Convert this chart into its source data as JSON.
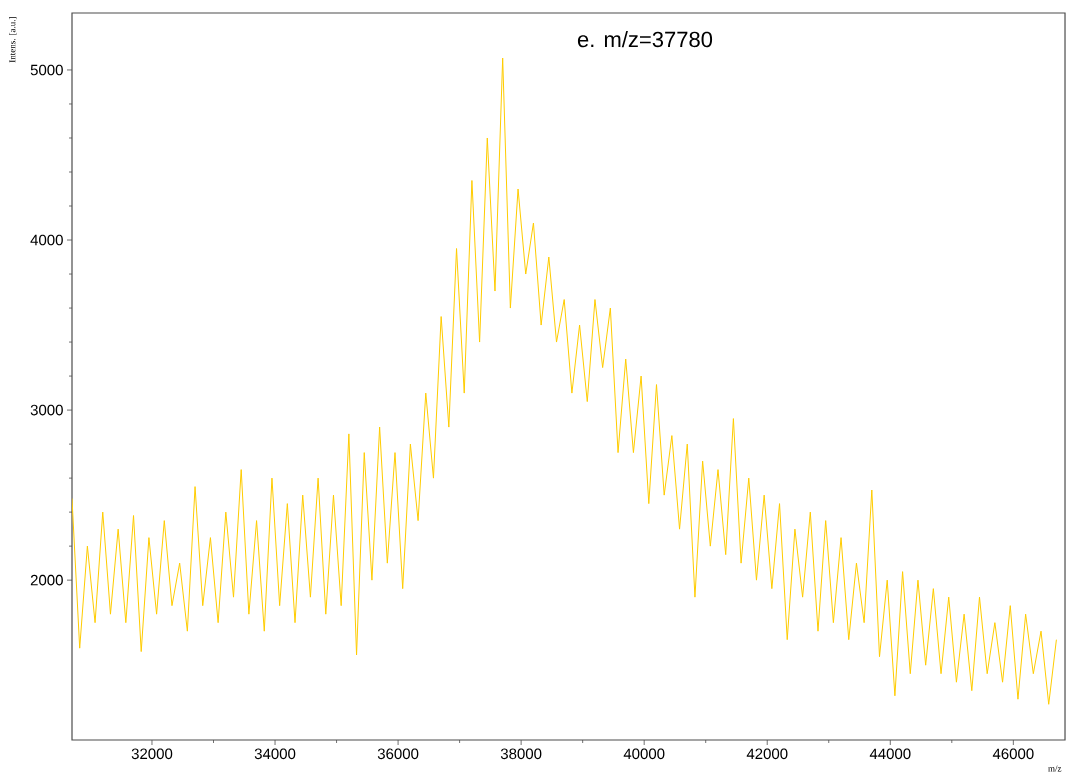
{
  "chart_data": {
    "type": "line",
    "xlabel": "m/z",
    "ylabel": "Intens. [a.u.]",
    "annotations": [
      "e. m/z=37780"
    ],
    "xlim": [
      30700,
      46840
    ],
    "ylim": [
      1060,
      5335
    ],
    "xticks": [
      32000,
      34000,
      36000,
      38000,
      40000,
      42000,
      44000,
      46000
    ],
    "yticks": [
      2000,
      3000,
      4000,
      5000
    ],
    "grid": false,
    "marker": "none",
    "line_style": "solid",
    "series": [
      {
        "color": "#ffcc00",
        "x": [
          30700,
          30825,
          30950,
          31075,
          31200,
          31325,
          31450,
          31575,
          31700,
          31825,
          31950,
          32075,
          32200,
          32325,
          32450,
          32575,
          32700,
          32825,
          32950,
          33075,
          33200,
          33325,
          33450,
          33575,
          33700,
          33825,
          33950,
          34075,
          34200,
          34325,
          34450,
          34575,
          34700,
          34825,
          34950,
          35075,
          35200,
          35325,
          35450,
          35575,
          35700,
          35825,
          35950,
          36075,
          36200,
          36325,
          36450,
          36575,
          36700,
          36825,
          36950,
          37075,
          37200,
          37325,
          37450,
          37575,
          37700,
          37825,
          37950,
          38075,
          38200,
          38325,
          38450,
          38575,
          38700,
          38825,
          38950,
          39075,
          39200,
          39325,
          39450,
          39575,
          39700,
          39825,
          39950,
          40075,
          40200,
          40325,
          40450,
          40575,
          40700,
          40825,
          40950,
          41075,
          41200,
          41325,
          41450,
          41575,
          41700,
          41825,
          41950,
          42075,
          42200,
          42325,
          42450,
          42575,
          42700,
          42825,
          42950,
          43075,
          43200,
          43325,
          43450,
          43575,
          43700,
          43825,
          43950,
          44075,
          44200,
          44325,
          44450,
          44575,
          44700,
          44825,
          44950,
          45075,
          45200,
          45325,
          45450,
          45575,
          45700,
          45825,
          45950,
          46075,
          46200,
          46325,
          46450,
          46575,
          46700
        ],
        "values": [
          2480,
          1600,
          2200,
          1750,
          2400,
          1800,
          2300,
          1750,
          2380,
          1580,
          2250,
          1800,
          2350,
          1850,
          2100,
          1700,
          2550,
          1850,
          2250,
          1750,
          2400,
          1900,
          2650,
          1800,
          2350,
          1700,
          2600,
          1850,
          2450,
          1750,
          2500,
          1900,
          2600,
          1800,
          2500,
          1850,
          2860,
          1560,
          2750,
          2000,
          2900,
          2100,
          2750,
          1950,
          2800,
          2350,
          3100,
          2600,
          3550,
          2900,
          3950,
          3100,
          4350,
          3400,
          4600,
          3700,
          5070,
          3600,
          4300,
          3800,
          4100,
          3500,
          3900,
          3400,
          3650,
          3100,
          3500,
          3050,
          3650,
          3250,
          3600,
          2750,
          3300,
          2750,
          3200,
          2450,
          3150,
          2500,
          2850,
          2300,
          2800,
          1900,
          2700,
          2200,
          2650,
          2150,
          2950,
          2100,
          2600,
          2000,
          2500,
          1950,
          2450,
          1650,
          2300,
          1900,
          2400,
          1700,
          2350,
          1750,
          2250,
          1650,
          2100,
          1750,
          2530,
          1550,
          2000,
          1320,
          2050,
          1450,
          2000,
          1500,
          1950,
          1450,
          1900,
          1400,
          1800,
          1350,
          1900,
          1450,
          1750,
          1400,
          1850,
          1300,
          1800,
          1450,
          1700,
          1270,
          1650
        ]
      }
    ]
  }
}
